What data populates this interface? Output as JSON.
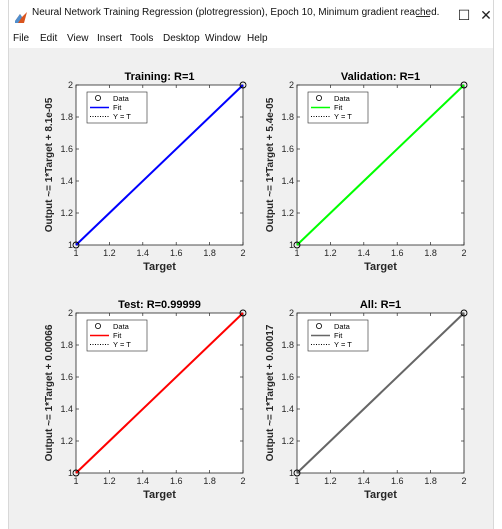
{
  "window": {
    "title": "Neural Network Training Regression (plotregression), Epoch 10, Minimum gradient reached.",
    "minimize_glyph": "—",
    "maximize_glyph": "☐",
    "close_glyph": "✕"
  },
  "menu": {
    "items": [
      "File",
      "Edit",
      "View",
      "Insert",
      "Tools",
      "Desktop",
      "Window",
      "Help"
    ]
  },
  "legend": {
    "data": "Data",
    "fit": "Fit",
    "yt": "Y = T"
  },
  "colors": {
    "training": "#0000ff",
    "validation": "#00ff00",
    "test": "#ff0000",
    "all": "#666666"
  },
  "chart_data": [
    {
      "type": "scatter",
      "title": "Training: R=1",
      "xlabel": "Target",
      "ylabel": "Output ~= 1*Target + 8.1e-05",
      "xlim": [
        1,
        2
      ],
      "ylim": [
        1,
        2
      ],
      "xticks": [
        "1",
        "1.2",
        "1.4",
        "1.6",
        "1.8",
        "2"
      ],
      "yticks": [
        "1",
        "1.2",
        "1.4",
        "1.6",
        "1.8",
        "2"
      ],
      "points": [
        [
          1,
          1
        ],
        [
          2,
          2
        ]
      ],
      "fit": [
        [
          1,
          1
        ],
        [
          2,
          2
        ]
      ],
      "fit_color": "#0000ff",
      "legend": [
        "Data",
        "Fit",
        "Y = T"
      ],
      "legend_position": "top-left"
    },
    {
      "type": "scatter",
      "title": "Validation: R=1",
      "xlabel": "Target",
      "ylabel": "Output ~= 1*Target + 5.4e-05",
      "xlim": [
        1,
        2
      ],
      "ylim": [
        1,
        2
      ],
      "xticks": [
        "1",
        "1.2",
        "1.4",
        "1.6",
        "1.8",
        "2"
      ],
      "yticks": [
        "1",
        "1.2",
        "1.4",
        "1.6",
        "1.8",
        "2"
      ],
      "points": [
        [
          1,
          1
        ],
        [
          2,
          2
        ]
      ],
      "fit": [
        [
          1,
          1
        ],
        [
          2,
          2
        ]
      ],
      "fit_color": "#00ff00",
      "legend": [
        "Data",
        "Fit",
        "Y = T"
      ],
      "legend_position": "top-left"
    },
    {
      "type": "scatter",
      "title": "Test: R=0.99999",
      "xlabel": "Target",
      "ylabel": "Output ~= 1*Target + 0.00066",
      "xlim": [
        1,
        2
      ],
      "ylim": [
        1,
        2
      ],
      "xticks": [
        "1",
        "1.2",
        "1.4",
        "1.6",
        "1.8",
        "2"
      ],
      "yticks": [
        "1",
        "1.2",
        "1.4",
        "1.6",
        "1.8",
        "2"
      ],
      "points": [
        [
          1,
          1
        ],
        [
          2,
          2
        ]
      ],
      "fit": [
        [
          1,
          1
        ],
        [
          2,
          2
        ]
      ],
      "fit_color": "#ff0000",
      "legend": [
        "Data",
        "Fit",
        "Y = T"
      ],
      "legend_position": "top-left"
    },
    {
      "type": "scatter",
      "title": "All: R=1",
      "xlabel": "Target",
      "ylabel": "Output ~= 1*Target + 0.00017",
      "xlim": [
        1,
        2
      ],
      "ylim": [
        1,
        2
      ],
      "xticks": [
        "1",
        "1.2",
        "1.4",
        "1.6",
        "1.8",
        "2"
      ],
      "yticks": [
        "1",
        "1.2",
        "1.4",
        "1.6",
        "1.8",
        "2"
      ],
      "points": [
        [
          1,
          1
        ],
        [
          2,
          2
        ]
      ],
      "fit": [
        [
          1,
          1
        ],
        [
          2,
          2
        ]
      ],
      "fit_color": "#666666",
      "legend": [
        "Data",
        "Fit",
        "Y = T"
      ],
      "legend_position": "top-left"
    }
  ]
}
